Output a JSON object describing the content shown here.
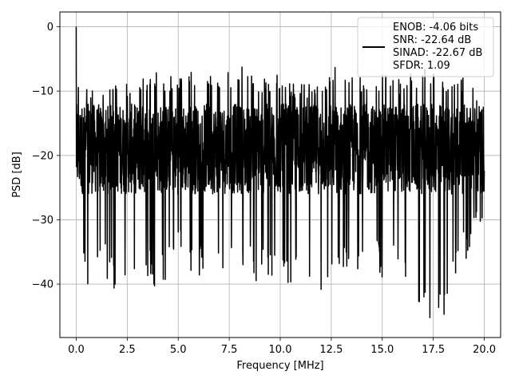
{
  "chart_data": {
    "type": "line",
    "title": "",
    "xlabel": "Frequency [MHz]",
    "ylabel": "PSD [dB]",
    "xlim": [
      -0.8,
      20.8
    ],
    "ylim": [
      -48.3,
      2.3
    ],
    "xticks": [
      0.0,
      2.5,
      5.0,
      7.5,
      10.0,
      12.5,
      15.0,
      17.5,
      20.0
    ],
    "xtick_labels": [
      "0.0",
      "2.5",
      "5.0",
      "7.5",
      "10.0",
      "12.5",
      "15.0",
      "17.5",
      "20.0"
    ],
    "yticks": [
      0,
      -10,
      -20,
      -30,
      -40
    ],
    "ytick_labels": [
      "0",
      "−10",
      "−20",
      "−30",
      "−40"
    ],
    "grid": true,
    "legend_position": "top-right",
    "legend_lines": [
      "ENOB: -4.06 bits",
      "SNR: -22.64 dB",
      "SINAD: -22.67 dB",
      "SFDR: 1.09"
    ],
    "series": [
      {
        "color": "#000000",
        "x_range": [
          0.0,
          20.0
        ],
        "n_points": 2049,
        "envelope": {
          "x": [
            0.0,
            0.05,
            0.1,
            0.5,
            1.0,
            2.0,
            3.0,
            4.0,
            5.0,
            6.0,
            7.0,
            8.0,
            9.0,
            10.0,
            11.0,
            12.0,
            13.0,
            14.0,
            15.0,
            16.0,
            17.0,
            18.0,
            19.0,
            20.0
          ],
          "upper": [
            0.0,
            -2.0,
            -8.0,
            -9.0,
            -10.0,
            -9.0,
            -8.0,
            -7.0,
            -8.0,
            -6.0,
            -8.0,
            -6.0,
            -8.0,
            -7.0,
            -9.0,
            -8.0,
            -5.0,
            -8.0,
            -7.0,
            -8.0,
            -6.0,
            -7.0,
            -8.0,
            -10.0
          ],
          "lower": [
            -20.0,
            -31.0,
            -30.0,
            -42.5,
            -38.0,
            -42.0,
            -39.0,
            -41.0,
            -37.0,
            -39.0,
            -37.0,
            -40.0,
            -40.0,
            -39.0,
            -41.0,
            -46.0,
            -39.0,
            -38.0,
            -39.0,
            -40.0,
            -45.5,
            -45.5,
            -37.0,
            -30.0
          ]
        },
        "typical_range": [
          -26,
          -12
        ]
      }
    ]
  }
}
